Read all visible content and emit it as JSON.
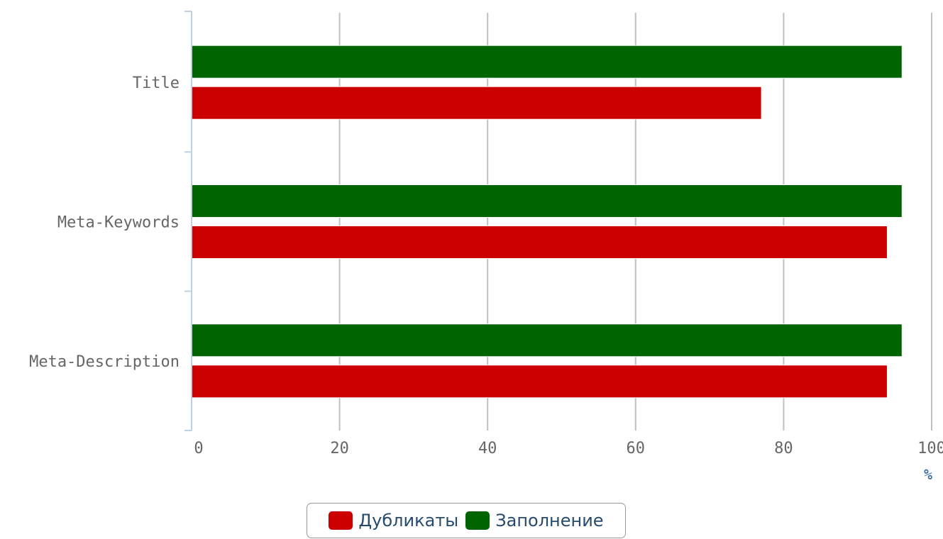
{
  "chart_data": {
    "type": "bar",
    "orientation": "horizontal",
    "categories": [
      "Title",
      "Meta-Keywords",
      "Meta-Description"
    ],
    "series": [
      {
        "name": "Заполнение",
        "color": "#006400",
        "values": [
          96,
          96,
          96
        ]
      },
      {
        "name": "Дубликаты",
        "color": "#cc0000",
        "values": [
          77,
          94,
          94
        ]
      }
    ],
    "xlim": [
      0,
      100
    ],
    "xticks": [
      "0",
      "20",
      "40",
      "60",
      "80",
      "100"
    ],
    "xlabel": "%",
    "grid": true,
    "legend_position": "bottom-center"
  },
  "legend": {
    "items": [
      {
        "label": "Дубликаты",
        "color": "#cc0000"
      },
      {
        "label": "Заполнение",
        "color": "#006400"
      }
    ]
  }
}
